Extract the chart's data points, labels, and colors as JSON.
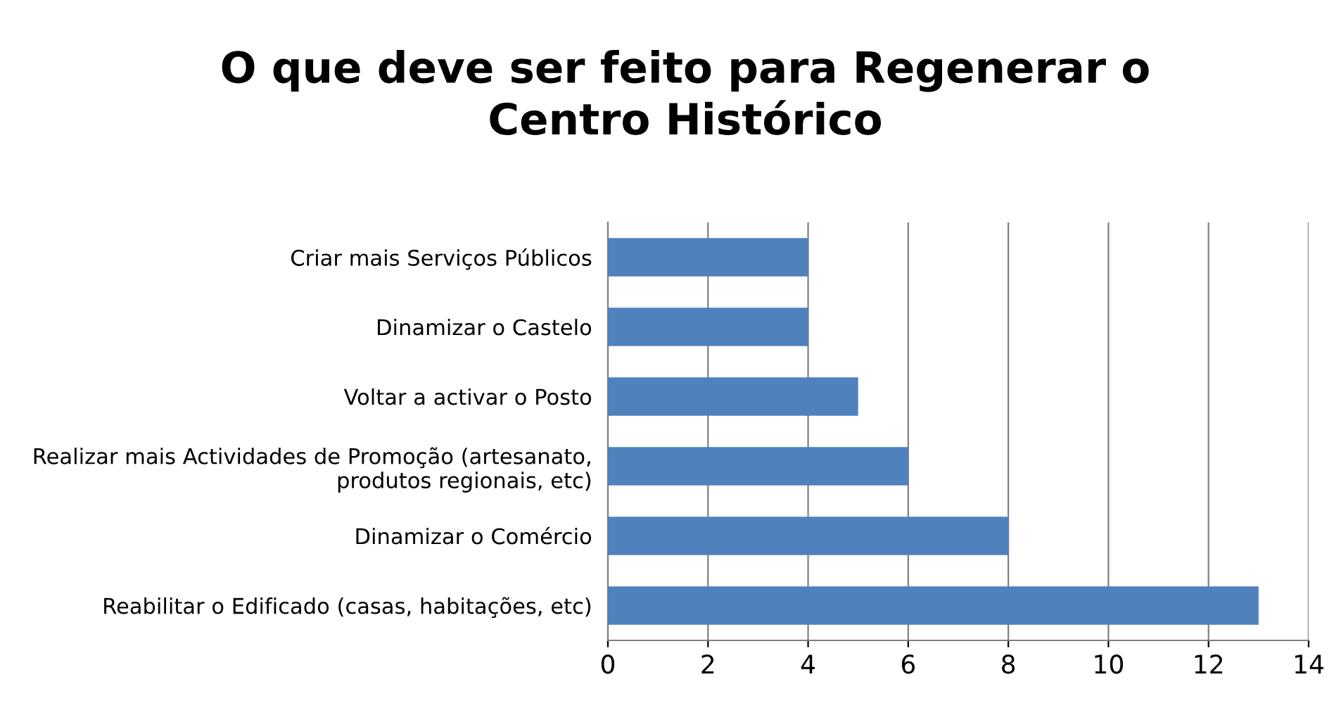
{
  "chart_data": {
    "type": "bar",
    "orientation": "horizontal",
    "title": "O que deve ser feito para Regenerar o\nCentro Histórico",
    "categories": [
      "Criar mais Serviços Públicos",
      "Dinamizar o Castelo",
      "Voltar a activar o Posto",
      "Realizar mais Actividades de Promoção (artesanato,\nprodutos regionais, etc)",
      "Dinamizar o Comércio",
      "Reabilitar o Edificado (casas, habitações, etc)"
    ],
    "values": [
      4,
      4,
      5,
      6,
      8,
      13
    ],
    "color": "#4f81bd",
    "xlim": [
      0,
      14
    ],
    "xticks": [
      0,
      2,
      4,
      6,
      8,
      10,
      12,
      14
    ],
    "grid": "x",
    "legend": false
  }
}
